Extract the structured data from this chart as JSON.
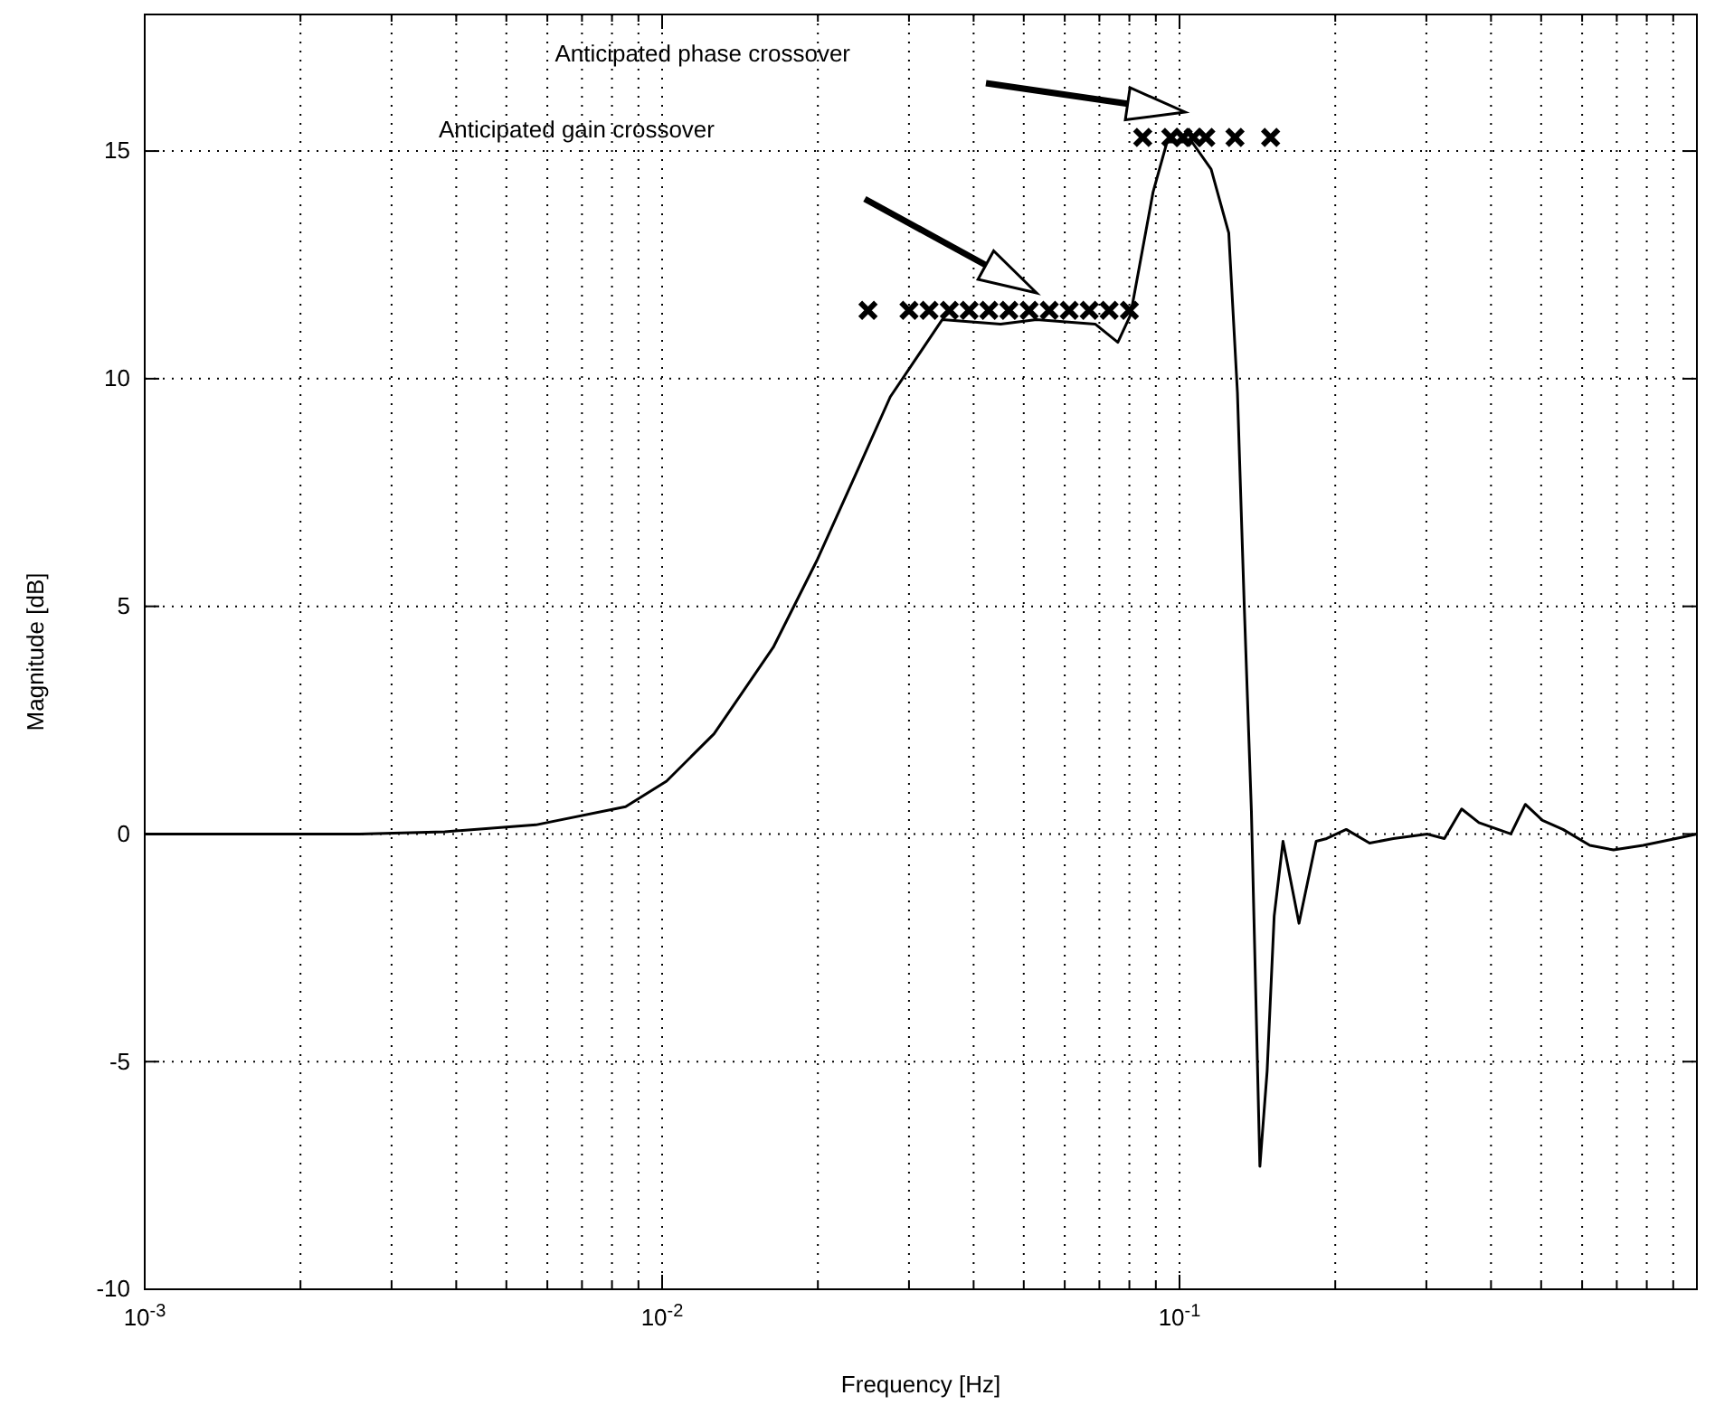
{
  "chart_data": {
    "type": "line",
    "xlabel": "Frequency [Hz]",
    "ylabel": "Magnitude [dB]",
    "log": "x",
    "grid": true,
    "line_style": "solid",
    "xlim": [
      0.001,
      1
    ],
    "ylim": [
      -10,
      18
    ],
    "xticks": [
      {
        "value": 0.001,
        "label": "10$^{-3}$"
      },
      {
        "value": 0.002,
        "label": null
      },
      {
        "value": 0.003,
        "label": null
      },
      {
        "value": 0.004,
        "label": null
      },
      {
        "value": 0.005,
        "label": null
      },
      {
        "value": 0.006,
        "label": null
      },
      {
        "value": 0.007,
        "label": null
      },
      {
        "value": 0.008,
        "label": null
      },
      {
        "value": 0.009,
        "label": null
      },
      {
        "value": 0.01,
        "label": "10$^{-2}$"
      },
      {
        "value": 0.02,
        "label": null
      },
      {
        "value": 0.03,
        "label": null
      },
      {
        "value": 0.04,
        "label": null
      },
      {
        "value": 0.05,
        "label": null
      },
      {
        "value": 0.06,
        "label": null
      },
      {
        "value": 0.07,
        "label": null
      },
      {
        "value": 0.08,
        "label": null
      },
      {
        "value": 0.09,
        "label": null
      },
      {
        "value": 0.1,
        "label": "10$^{-1}$"
      },
      {
        "value": 0.2,
        "label": null
      },
      {
        "value": 0.3,
        "label": null
      },
      {
        "value": 0.4,
        "label": null
      },
      {
        "value": 0.5,
        "label": null
      },
      {
        "value": 0.6,
        "label": null
      },
      {
        "value": 0.7,
        "label": null
      },
      {
        "value": 0.8,
        "label": null
      },
      {
        "value": 0.9,
        "label": null
      }
    ],
    "yticks": [
      -10,
      -5,
      0,
      5,
      10,
      15
    ],
    "annotations": [
      "Anticipated phase crossover",
      "Anticipated gain crossover"
    ],
    "series": [
      {
        "type": "line",
        "color": "#000000",
        "x": [
          0.001,
          0.0026,
          0.0038,
          0.0057,
          0.0085,
          0.0102,
          0.0126,
          0.0164,
          0.0199,
          0.0241,
          0.0276,
          0.0348,
          0.0451,
          0.0529,
          0.0687,
          0.076,
          0.0804,
          0.0889,
          0.0946,
          0.1057,
          0.1151,
          0.1245,
          0.1294,
          0.1334,
          0.1377,
          0.143,
          0.1477,
          0.1524,
          0.1585,
          0.1702,
          0.1837,
          0.1925,
          0.21,
          0.233,
          0.259,
          0.301,
          0.325,
          0.351,
          0.379,
          0.437,
          0.466,
          0.503,
          0.551,
          0.621,
          0.69,
          0.787,
          0.91,
          1
        ],
        "values": [
          0,
          0,
          0.05,
          0.2,
          0.6,
          1.16,
          2.2,
          4.1,
          6,
          8.1,
          9.6,
          11.3,
          11.2,
          11.3,
          11.2,
          10.8,
          11.4,
          14.1,
          15.2,
          15.2,
          14.6,
          13.2,
          9.7,
          5,
          0.5,
          -7.3,
          -5.2,
          -1.8,
          -0.16,
          -1.96,
          -0.16,
          -0.1,
          0.1,
          -0.2,
          -0.1,
          0,
          -0.1,
          0.55,
          0.25,
          0,
          0.65,
          0.3,
          0.1,
          -0.25,
          -0.35,
          -0.25,
          -0.1,
          0
        ]
      },
      {
        "type": "scatter",
        "color": "#000000",
        "marker": "cross",
        "x": [
          0.025,
          0.03,
          0.0328,
          0.0359,
          0.0392,
          0.0428,
          0.0468,
          0.0512,
          0.056,
          0.0612,
          0.0669,
          0.0731,
          0.08
        ],
        "values": [
          11.5,
          11.5,
          11.5,
          11.5,
          11.5,
          11.5,
          11.5,
          11.5,
          11.5,
          11.5,
          11.5,
          11.5,
          11.5
        ]
      },
      {
        "type": "scatter",
        "color": "#000000",
        "marker": "cross",
        "x": [
          0.0849,
          0.0962,
          0.1016,
          0.1063,
          0.1124,
          0.128,
          0.15
        ],
        "values": [
          15.3,
          15.3,
          15.3,
          15.3,
          15.3,
          15.3,
          15.3
        ]
      }
    ]
  }
}
